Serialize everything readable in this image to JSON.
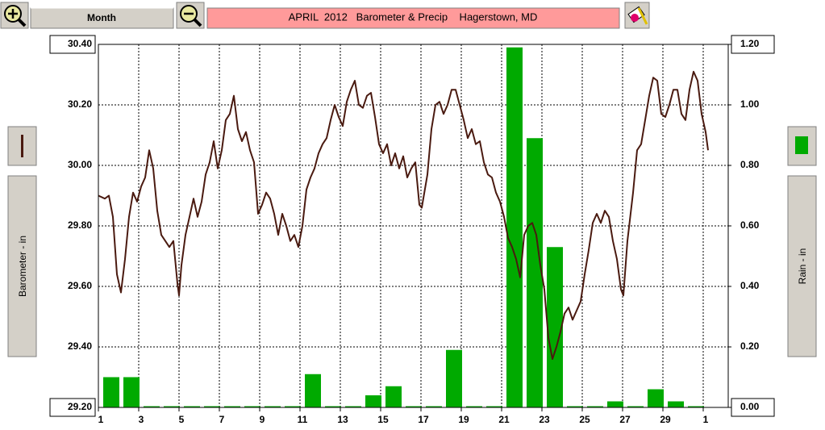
{
  "controls": {
    "period": "Month"
  },
  "chart_data": {
    "type": "combo",
    "title": "APRIL  2012   Barometer & Precip    Hagerstown, MD",
    "ylabel": "Barometer - in",
    "y2label": "Rain - in",
    "xlim": [
      1,
      32.24
    ],
    "xticks": [
      1,
      3,
      5,
      7,
      9,
      11,
      13,
      15,
      17,
      19,
      21,
      23,
      25,
      27,
      29,
      {
        "value": 31,
        "label": "1"
      }
    ],
    "ylim": [
      29.2,
      30.4
    ],
    "yticks": [
      {
        "value": 29.2,
        "label": "29.20"
      },
      {
        "value": 29.4,
        "label": "29.40"
      },
      {
        "value": 29.6,
        "label": "29.60"
      },
      {
        "value": 29.8,
        "label": "29.80"
      },
      {
        "value": 30.0,
        "label": "30.00"
      },
      {
        "value": 30.2,
        "label": "30.20"
      },
      {
        "value": 30.4,
        "label": "30.40"
      }
    ],
    "y2lim": [
      0,
      1.2
    ],
    "y2ticks": [
      {
        "value": 0,
        "label": "0.00"
      },
      {
        "value": 0.2,
        "label": "0.20"
      },
      {
        "value": 0.4,
        "label": "0.40"
      },
      {
        "value": 0.6,
        "label": "0.60"
      },
      {
        "value": 0.8,
        "label": "0.80"
      },
      {
        "value": 1.0,
        "label": "1.00"
      },
      {
        "value": 1.2,
        "label": "1.20"
      }
    ],
    "grid": true,
    "series": [
      {
        "type": "line",
        "color": "#4a1a10",
        "x": [
          1,
          1.32,
          1.52,
          1.72,
          1.92,
          2.12,
          2.32,
          2.52,
          2.72,
          2.92,
          3.12,
          3.32,
          3.52,
          3.72,
          3.92,
          4.12,
          4.32,
          4.52,
          4.72,
          4.92,
          5,
          5.12,
          5.32,
          5.52,
          5.72,
          5.92,
          6.12,
          6.32,
          6.52,
          6.72,
          6.92,
          7.12,
          7.32,
          7.52,
          7.72,
          7.92,
          8.12,
          8.32,
          8.52,
          8.72,
          8.92,
          9.12,
          9.32,
          9.52,
          9.72,
          9.92,
          10.12,
          10.32,
          10.52,
          10.72,
          10.92,
          11.12,
          11.32,
          11.52,
          11.72,
          11.92,
          12.12,
          12.32,
          12.52,
          12.72,
          12.92,
          13.12,
          13.32,
          13.52,
          13.72,
          13.92,
          14.12,
          14.32,
          14.52,
          14.72,
          14.92,
          15.12,
          15.32,
          15.52,
          15.72,
          15.92,
          16.12,
          16.32,
          16.52,
          16.72,
          16.92,
          17.04,
          17.32,
          17.52,
          17.72,
          17.92,
          18.12,
          18.32,
          18.52,
          18.72,
          18.92,
          19.12,
          19.32,
          19.52,
          19.72,
          19.92,
          20.12,
          20.32,
          20.52,
          20.72,
          20.92,
          21.12,
          21.32,
          21.52,
          21.72,
          21.92,
          22.12,
          22.32,
          22.52,
          22.72,
          22.92,
          23.12,
          23.32,
          23.52,
          23.72,
          23.92,
          24.12,
          24.32,
          24.52,
          24.72,
          24.92,
          25.12,
          25.32,
          25.52,
          25.72,
          25.92,
          26.12,
          26.32,
          26.52,
          26.72,
          26.92,
          27.04,
          27.24,
          27.52,
          27.72,
          27.92,
          28.12,
          28.32,
          28.52,
          28.72,
          28.92,
          29.12,
          29.32,
          29.52,
          29.72,
          29.92,
          30.12,
          30.32,
          30.52,
          30.72,
          30.92,
          31.12,
          31.24
        ],
        "values": [
          29.9,
          29.89,
          29.9,
          29.83,
          29.64,
          29.58,
          29.69,
          29.83,
          29.91,
          29.88,
          29.93,
          29.96,
          30.05,
          29.99,
          29.85,
          29.77,
          29.75,
          29.73,
          29.75,
          29.61,
          29.57,
          29.67,
          29.77,
          29.83,
          29.89,
          29.83,
          29.88,
          29.97,
          30.01,
          30.08,
          29.99,
          30.05,
          30.15,
          30.17,
          30.23,
          30.12,
          30.08,
          30.11,
          30.05,
          30.01,
          29.84,
          29.87,
          29.91,
          29.89,
          29.84,
          29.77,
          29.84,
          29.8,
          29.75,
          29.77,
          29.73,
          29.8,
          29.92,
          29.96,
          29.99,
          30.04,
          30.07,
          30.09,
          30.15,
          30.2,
          30.16,
          30.13,
          30.21,
          30.25,
          30.28,
          30.2,
          30.19,
          30.23,
          30.24,
          30.16,
          30.07,
          30.04,
          30.07,
          30.0,
          30.04,
          29.99,
          30.03,
          29.96,
          29.99,
          30.01,
          29.87,
          29.86,
          29.97,
          30.12,
          30.2,
          30.21,
          30.17,
          30.2,
          30.25,
          30.25,
          30.2,
          30.15,
          30.09,
          30.12,
          30.07,
          30.08,
          30.01,
          29.97,
          29.96,
          29.91,
          29.88,
          29.83,
          29.76,
          29.73,
          29.69,
          29.63,
          29.77,
          29.8,
          29.81,
          29.77,
          29.67,
          29.59,
          29.43,
          29.36,
          29.4,
          29.45,
          29.51,
          29.53,
          29.49,
          29.52,
          29.55,
          29.64,
          29.72,
          29.81,
          29.84,
          29.81,
          29.85,
          29.83,
          29.75,
          29.69,
          29.59,
          29.57,
          29.75,
          29.91,
          30.05,
          30.07,
          30.15,
          30.23,
          30.29,
          30.28,
          30.17,
          30.16,
          30.2,
          30.25,
          30.25,
          30.17,
          30.15,
          30.25,
          30.31,
          30.28,
          30.17,
          30.11,
          30.05
        ]
      },
      {
        "type": "bar",
        "axis": "y2",
        "color": "#00aa00",
        "x": [
          1,
          2,
          3,
          4,
          5,
          6,
          7,
          8,
          9,
          10,
          11,
          12,
          13,
          14,
          15,
          16,
          17,
          18,
          19,
          20,
          21,
          22,
          23,
          24,
          25,
          26,
          27,
          28,
          29,
          30
        ],
        "values": [
          0.1,
          0.1,
          0,
          0,
          0,
          0,
          0,
          0,
          0,
          0,
          0.11,
          0,
          0,
          0.04,
          0.07,
          0,
          0,
          0.19,
          0,
          0,
          1.19,
          0.89,
          0.53,
          0,
          0,
          0.02,
          0,
          0.06,
          0.02,
          0
        ]
      }
    ]
  }
}
